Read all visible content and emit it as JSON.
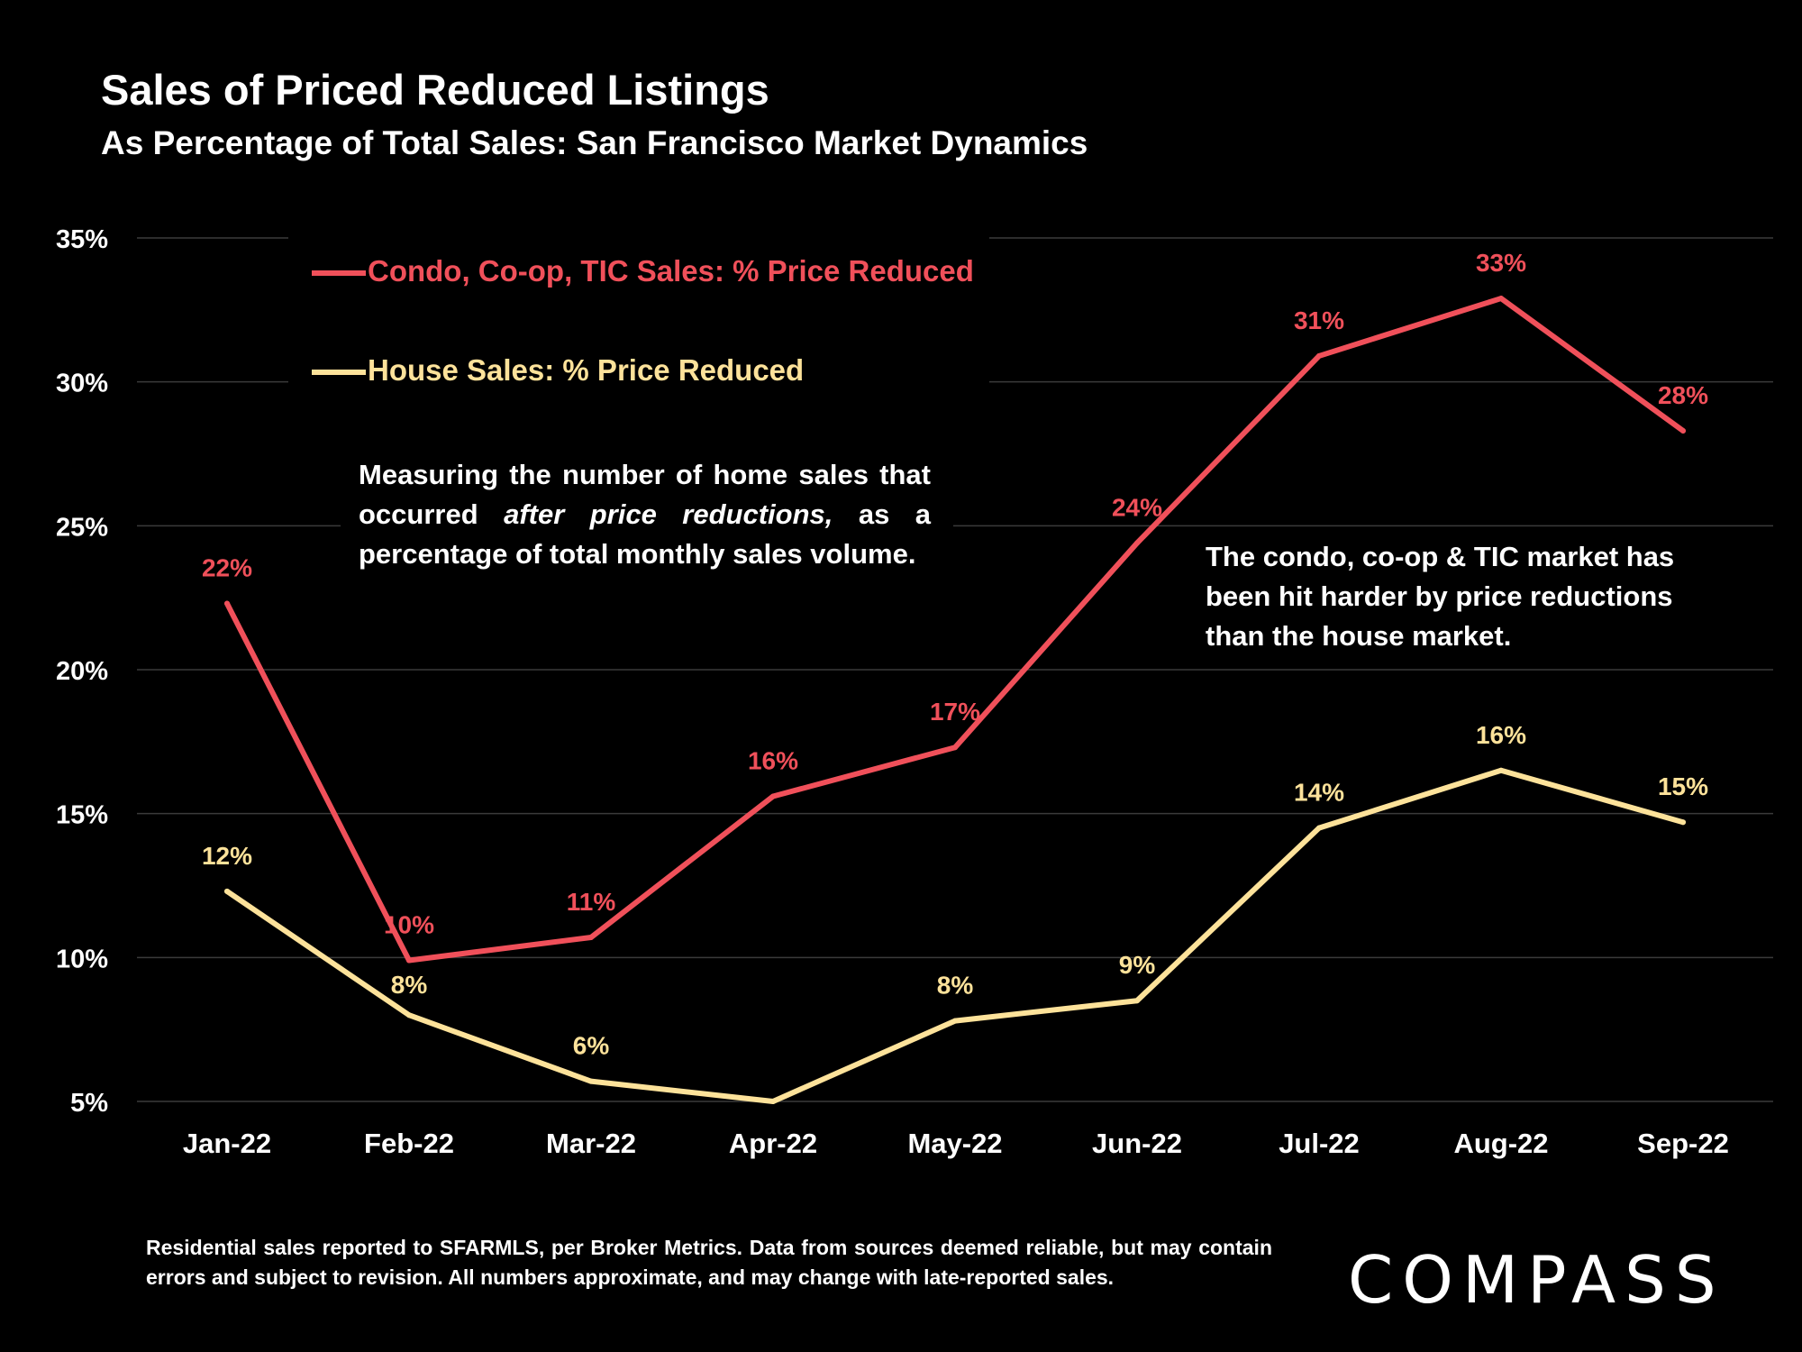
{
  "colors": {
    "background": "#000000",
    "condo": "#f0505a",
    "house": "#fde29a",
    "grid": "#3a3a3a",
    "text": "#ffffff"
  },
  "header": {
    "title": "Sales of Priced Reduced Listings",
    "subtitle": "As Percentage of Total Sales:  San Francisco Market Dynamics"
  },
  "notes": {
    "measuring_pre": "Measuring the number of home sales that occurred ",
    "measuring_italic": "after price reductions,",
    "measuring_post": " as a percentage of total monthly sales volume.",
    "comparison": "The condo, co-op & TIC market has been hit harder by price reductions than the house market."
  },
  "footnote": "Residential sales reported to SFARMLS, per Broker Metrics. Data from sources deemed reliable, but may contain errors and subject to revision. All numbers approximate, and may change with late-reported sales.",
  "logo": "COMPASS",
  "chart_data": {
    "type": "line",
    "categories": [
      "Jan-22",
      "Feb-22",
      "Mar-22",
      "Apr-22",
      "May-22",
      "Jun-22",
      "Jul-22",
      "Aug-22",
      "Sep-22"
    ],
    "ylim": [
      5,
      35
    ],
    "yticks": [
      {
        "value": 5,
        "label": "5%"
      },
      {
        "value": 10,
        "label": "10%"
      },
      {
        "value": 15,
        "label": "15%"
      },
      {
        "value": 20,
        "label": "20%"
      },
      {
        "value": 25,
        "label": "25%"
      },
      {
        "value": 30,
        "label": "30%"
      },
      {
        "value": 35,
        "label": "35%"
      }
    ],
    "grid": true,
    "legend_position": "top-left",
    "series": [
      {
        "name": "Condo, Co-op, TIC Sales: % Price Reduced",
        "color": "#f0505a",
        "values": [
          22.3,
          9.9,
          10.7,
          15.6,
          17.3,
          24.4,
          30.9,
          32.9,
          28.3
        ],
        "labels": [
          "22%",
          "10%",
          "11%",
          "16%",
          "17%",
          "24%",
          "31%",
          "33%",
          "28%"
        ]
      },
      {
        "name": "House Sales: % Price Reduced",
        "color": "#fde29a",
        "values": [
          12.3,
          8.0,
          5.7,
          5.0,
          7.8,
          8.5,
          14.5,
          16.5,
          14.7
        ],
        "labels": [
          "12%",
          "8%",
          "6%",
          "",
          "8%",
          "9%",
          "14%",
          "16%",
          "15%"
        ]
      }
    ]
  }
}
